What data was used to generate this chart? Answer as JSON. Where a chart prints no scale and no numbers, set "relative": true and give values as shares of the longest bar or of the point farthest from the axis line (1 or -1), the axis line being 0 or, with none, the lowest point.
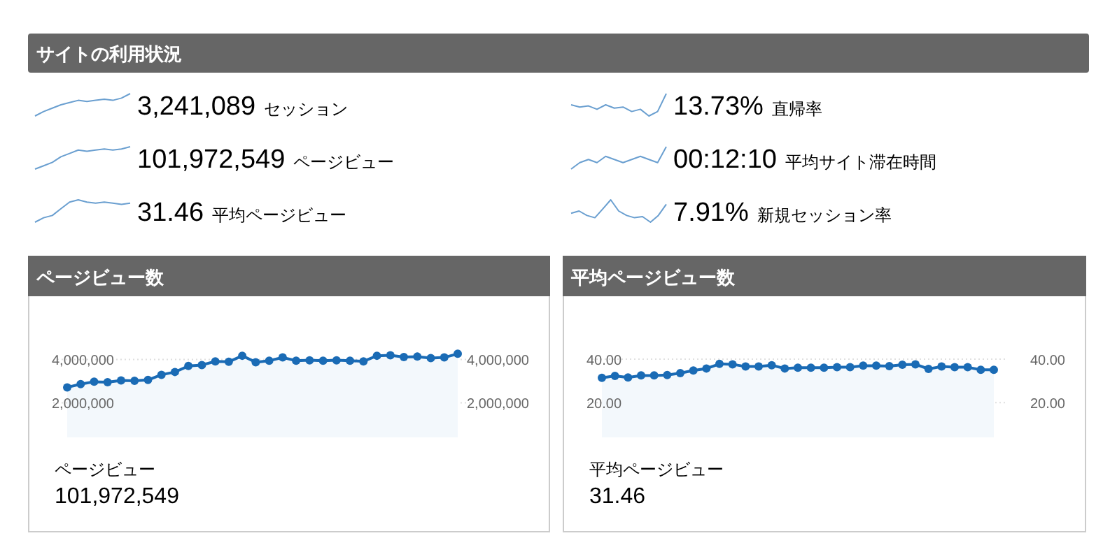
{
  "chart_data": [
    {
      "type": "other",
      "title": "サイトの利用状況"
    },
    {
      "type": "line",
      "relative": true,
      "annotations": [
        "3,241,089",
        "セッション"
      ],
      "color": "#6a9fd0",
      "values": [
        0,
        0.2,
        0.35,
        0.5,
        0.6,
        0.7,
        0.65,
        0.7,
        0.75,
        0.7,
        0.8,
        1
      ]
    },
    {
      "type": "line",
      "relative": true,
      "annotations": [
        "13.73%",
        "直帰率"
      ],
      "color": "#6a9fd0",
      "values": [
        0.5,
        0.4,
        0.45,
        0.3,
        0.5,
        0.35,
        0.4,
        0.2,
        0.3,
        0,
        0.2,
        1
      ]
    },
    {
      "type": "line",
      "relative": true,
      "annotations": [
        "101,972,549",
        "ページビュー"
      ],
      "color": "#6a9fd0",
      "values": [
        0,
        0.15,
        0.3,
        0.55,
        0.7,
        0.85,
        0.8,
        0.85,
        0.9,
        0.85,
        0.9,
        1
      ]
    },
    {
      "type": "line",
      "relative": true,
      "annotations": [
        "00:12:10",
        "平均サイト滞在時間"
      ],
      "color": "#6a9fd0",
      "values": [
        0,
        0.29,
        0.43,
        0.29,
        0.57,
        0.43,
        0.29,
        0.43,
        0.57,
        0.43,
        0.29,
        1
      ]
    },
    {
      "type": "line",
      "relative": true,
      "annotations": [
        "31.46",
        "平均ページビュー"
      ],
      "color": "#6a9fd0",
      "values": [
        0,
        0.2,
        0.3,
        0.6,
        0.9,
        1,
        0.9,
        0.85,
        0.9,
        0.85,
        0.8,
        0.85
      ]
    },
    {
      "type": "line",
      "relative": true,
      "annotations": [
        "7.91%",
        "新規セッション率"
      ],
      "color": "#6a9fd0",
      "values": [
        0.4,
        0.5,
        0.3,
        0.2,
        0.6,
        1,
        0.5,
        0.3,
        0.2,
        0.25,
        0,
        0.3,
        0.8
      ]
    },
    {
      "type": "line",
      "title": "ページビュー数",
      "annotations": [
        "ページビュー",
        "101,972,549"
      ],
      "color": "#1a6bb5",
      "marker": "circle",
      "grid": "y",
      "categories": [
        null,
        null,
        null,
        null,
        null,
        null,
        null,
        null,
        null,
        null,
        null,
        null,
        null,
        null,
        null,
        null,
        null,
        null,
        null,
        null,
        null,
        null,
        null,
        null,
        null,
        null,
        null,
        null,
        null,
        null
      ],
      "values": [
        2710000,
        2860000,
        2970000,
        2950000,
        3030000,
        3010000,
        3050000,
        3290000,
        3420000,
        3700000,
        3740000,
        3910000,
        3890000,
        4170000,
        3870000,
        3940000,
        4090000,
        3940000,
        3960000,
        3940000,
        3960000,
        3940000,
        3910000,
        4170000,
        4190000,
        4110000,
        4130000,
        4060000,
        4090000,
        4260000
      ],
      "ylim": [
        400000,
        4400000
      ],
      "yticks": [
        {
          "value": 2000000,
          "label": "2,000,000"
        },
        {
          "value": 4000000,
          "label": "4,000,000"
        }
      ],
      "y2lim": [
        400000,
        4400000
      ],
      "y2ticks": [
        {
          "value": 2000000,
          "label": "2,000,000"
        },
        {
          "value": 4000000,
          "label": "4,000,000"
        }
      ]
    },
    {
      "type": "line",
      "title": "平均ページビュー数",
      "annotations": [
        "平均ページビュー",
        "31.46"
      ],
      "color": "#1a6bb5",
      "marker": "circle",
      "grid": "y",
      "categories": [
        null,
        null,
        null,
        null,
        null,
        null,
        null,
        null,
        null,
        null,
        null,
        null,
        null,
        null,
        null,
        null,
        null,
        null,
        null,
        null,
        null,
        null,
        null,
        null,
        null,
        null,
        null,
        null,
        null,
        null,
        null
      ],
      "values": [
        31.4,
        32.3,
        31.6,
        32.5,
        32.5,
        32.7,
        33.6,
        34.8,
        35.7,
        37.8,
        37.6,
        36.6,
        36.6,
        37.2,
        35.7,
        36.1,
        36.1,
        36.1,
        36.3,
        36.3,
        37.0,
        37.0,
        36.8,
        37.4,
        37.6,
        35.5,
        36.6,
        36.3,
        36.3,
        35.1,
        35.1
      ],
      "ylim": [
        4,
        40
      ],
      "yticks": [
        {
          "value": 20,
          "label": "20.00"
        },
        {
          "value": 40,
          "label": "40.00"
        }
      ],
      "y2lim": [
        4,
        40
      ],
      "y2ticks": [
        {
          "value": 20,
          "label": "20.00"
        },
        {
          "value": 40,
          "label": "40.00"
        }
      ]
    }
  ]
}
